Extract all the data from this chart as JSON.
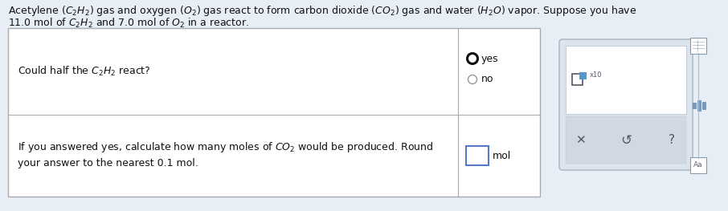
{
  "bg_color": "#e8eef5",
  "line1": "Acetylene $(C_2H_2)$ gas and oxygen $(O_2)$ gas react to form carbon dioxide $(CO_2)$ gas and water $(H_2O)$ vapor. Suppose you have",
  "line2": "11.0 mol of $C_2H_2$ and 7.0 mol of $O_2$ in a reactor.",
  "q1": "Could half the $C_2H_2$ react?",
  "opt_yes": "yes",
  "opt_no": "no",
  "q2a": "If you answered yes, calculate how many moles of $CO_2$ would be produced. Round",
  "q2b": "your answer to the nearest 0.1 mol.",
  "mol": "mol",
  "table_bg": "#ffffff",
  "border_color": "#aaaaaa",
  "panel_bg": "#dce4ee",
  "panel_border": "#b0bcc8",
  "font_size": 9.0,
  "text_color": "#111111",
  "radio_yes_edge": "#111111",
  "radio_no_edge": "#999999",
  "input_border": "#5577cc",
  "icon_color": "#555566",
  "x10_color": "#555566",
  "panel_inner_bg": "#e8eef5",
  "panel_strip_bg": "#d0d8e4"
}
